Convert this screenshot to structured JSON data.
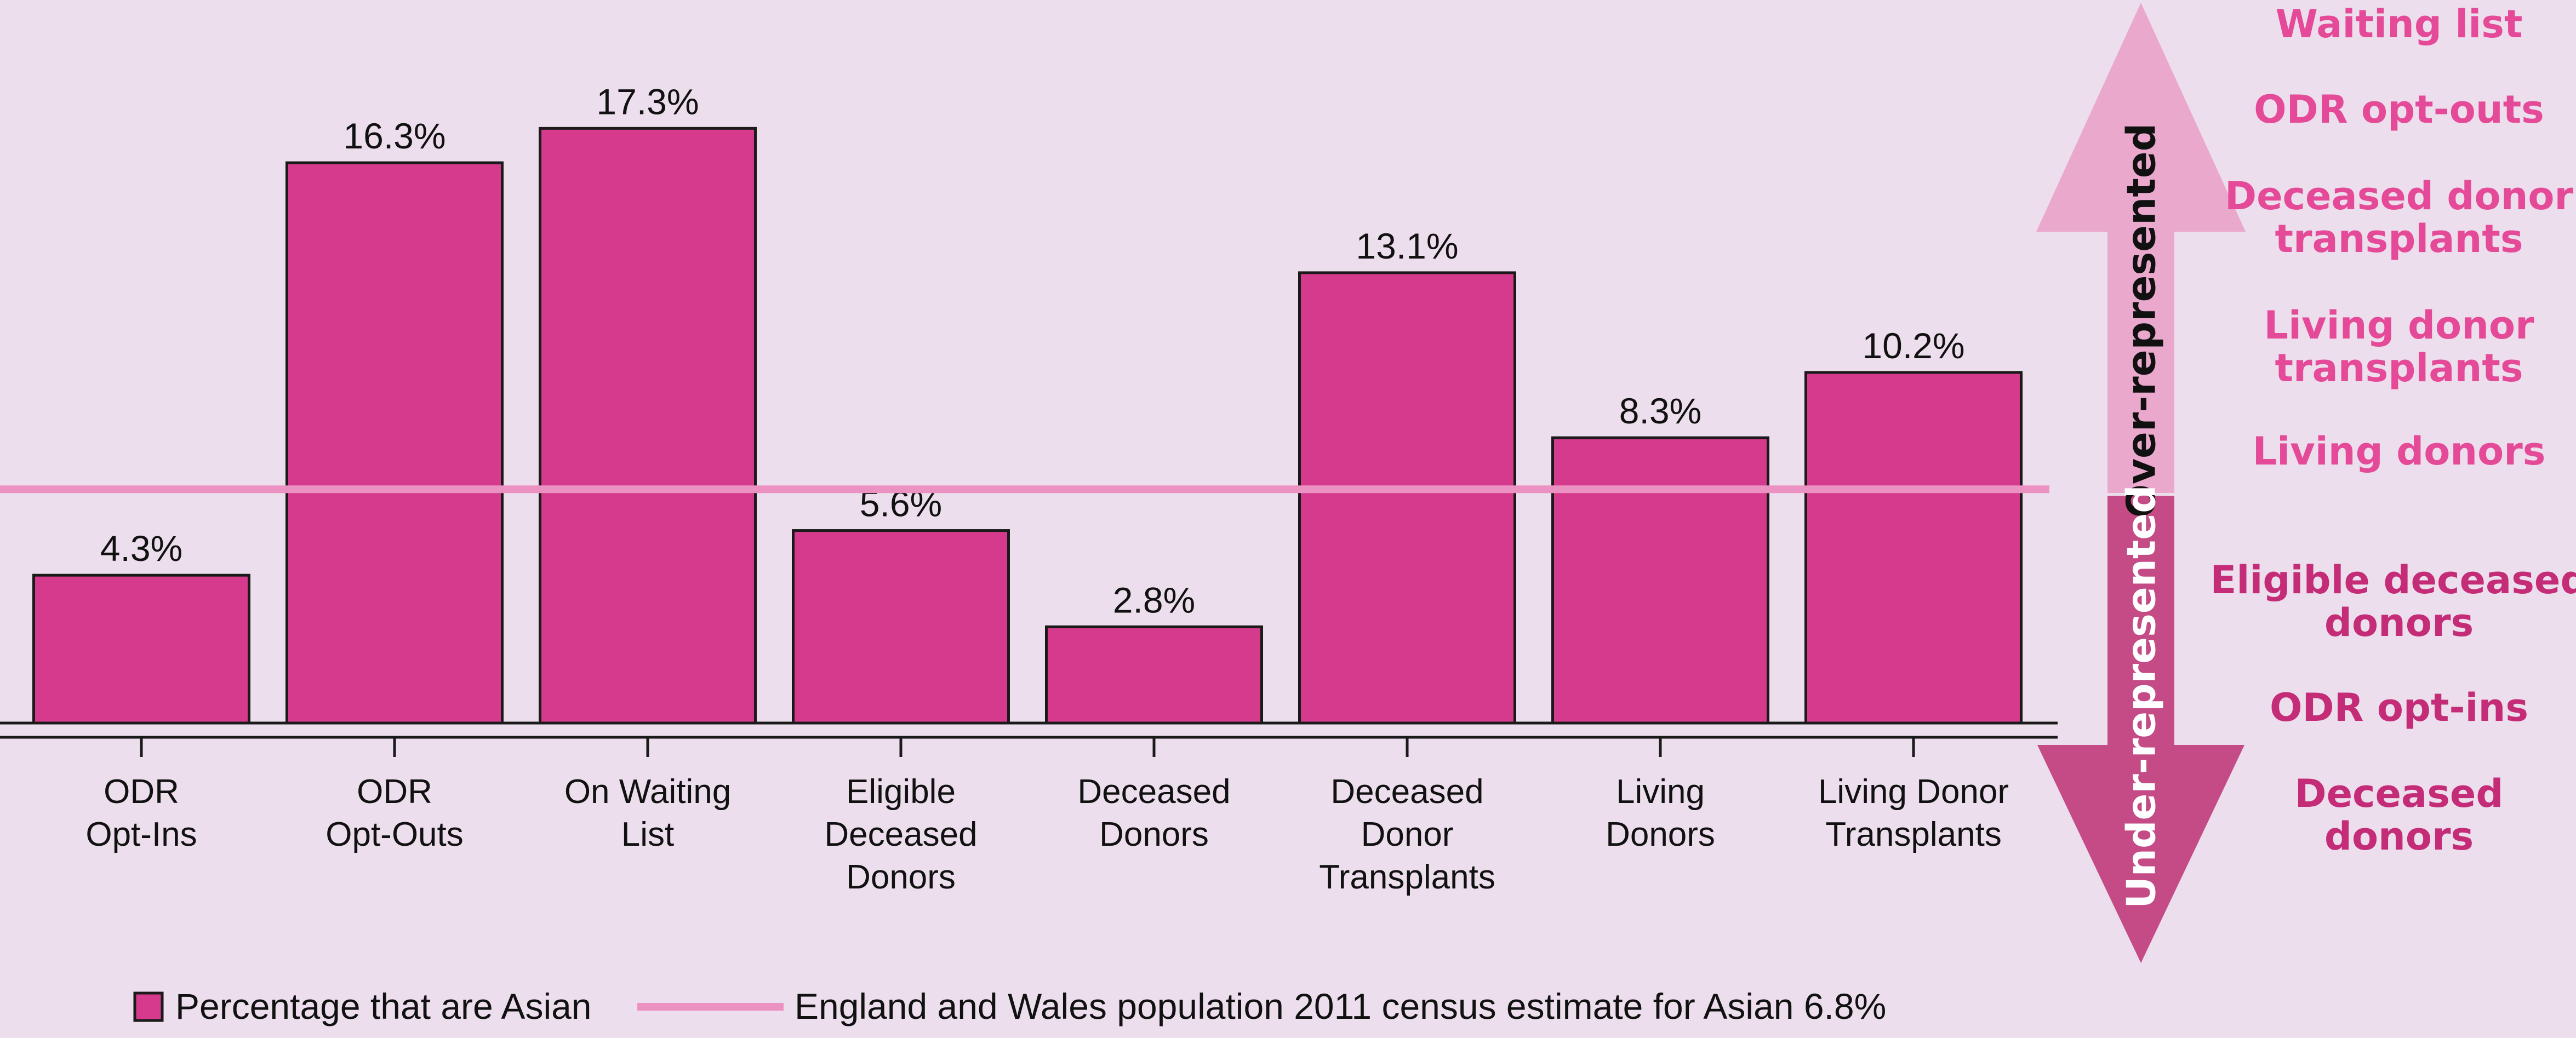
{
  "chart_data": {
    "type": "bar",
    "categories": [
      [
        "ODR",
        "Opt-Ins"
      ],
      [
        "ODR",
        "Opt-Outs"
      ],
      [
        "On Waiting",
        "List"
      ],
      [
        "Eligible",
        "Deceased",
        "Donors"
      ],
      [
        "Deceased",
        "Donors"
      ],
      [
        "Deceased",
        "Donor",
        "Transplants"
      ],
      [
        "Living",
        "Donors"
      ],
      [
        "Living Donor",
        "Transplants"
      ]
    ],
    "series": [
      {
        "name": "Percentage that are Asian",
        "values": [
          4.3,
          16.3,
          17.3,
          5.6,
          2.8,
          13.1,
          8.3,
          10.2
        ],
        "labels": [
          "4.3%",
          "16.3%",
          "17.3%",
          "5.6%",
          "2.8%",
          "13.1%",
          "8.3%",
          "10.2%"
        ],
        "color": "#d63a8c"
      }
    ],
    "reference_line": {
      "name": "England and Wales population 2011 census estimate for Asian 6.8%",
      "value": 6.8,
      "color": "#ec92c2"
    },
    "ylim": [
      0,
      19.6
    ],
    "legend_position": "bottom"
  },
  "legend": {
    "bar_label": "Percentage that are Asian",
    "line_label": "England and Wales population 2011 census estimate for Asian 6.8%"
  },
  "side_panel": {
    "arrow_up_label": "Over-represented",
    "arrow_down_label": "Under-represented",
    "over_items": [
      [
        "Waiting list"
      ],
      [
        "ODR opt-outs"
      ],
      [
        "Deceased donor",
        "transplants"
      ],
      [
        "Living donor",
        "transplants"
      ],
      [
        "Living donors"
      ]
    ],
    "under_items": [
      [
        "Eligible deceased",
        "donors"
      ],
      [
        "ODR opt-ins"
      ],
      [
        "Deceased",
        "donors"
      ]
    ],
    "colors": {
      "over": "#e44a97",
      "under": "#c42c78",
      "arrow_up": "#eaa8cc",
      "arrow_down": "#c44b86"
    }
  }
}
